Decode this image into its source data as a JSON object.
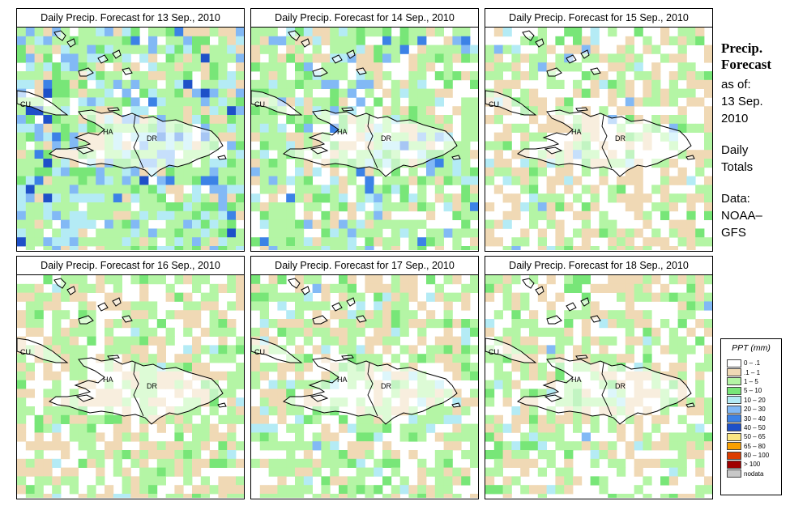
{
  "panels": [
    {
      "title": "Daily Precip. Forecast for  13 Sep., 2010",
      "seed": 13,
      "weights": [
        0.08,
        0.12,
        0.4,
        0.12,
        0.14,
        0.1,
        0.02,
        0.02
      ]
    },
    {
      "title": "Daily Precip. Forecast for  14 Sep., 2010",
      "seed": 14,
      "weights": [
        0.2,
        0.15,
        0.42,
        0.1,
        0.08,
        0.04,
        0.01,
        0.0
      ]
    },
    {
      "title": "Daily Precip. Forecast for  15 Sep., 2010",
      "seed": 15,
      "weights": [
        0.38,
        0.26,
        0.26,
        0.06,
        0.03,
        0.01,
        0.0,
        0.0
      ]
    },
    {
      "title": "Daily Precip. Forecast for  16 Sep., 2010",
      "seed": 16,
      "weights": [
        0.3,
        0.3,
        0.33,
        0.05,
        0.02,
        0.0,
        0.0,
        0.0
      ]
    },
    {
      "title": "Daily Precip. Forecast for  17 Sep., 2010",
      "seed": 17,
      "weights": [
        0.28,
        0.22,
        0.36,
        0.08,
        0.05,
        0.01,
        0.0,
        0.0
      ]
    },
    {
      "title": "Daily Precip. Forecast for  18 Sep., 2010",
      "seed": 18,
      "weights": [
        0.4,
        0.25,
        0.27,
        0.05,
        0.02,
        0.01,
        0.0,
        0.0
      ]
    }
  ],
  "map_labels": {
    "cu": "CU",
    "ha": "HA",
    "dr": "DR"
  },
  "sidebar": {
    "title_line1": "Precip.",
    "title_line2": "Forecast",
    "asof": "as of:",
    "date_line1": "13 Sep.",
    "date_line2": "2010",
    "daily_line1": "Daily",
    "daily_line2": "Totals",
    "data_line1": "Data:",
    "data_line2": "NOAA–",
    "data_line3": "GFS"
  },
  "legend": {
    "title": "PPT (mm)",
    "items": [
      {
        "label": "0 – .1",
        "color": "#ffffff"
      },
      {
        "label": ".1 – 1",
        "color": "#f0d9b5"
      },
      {
        "label": "1 – 5",
        "color": "#b4f5a5"
      },
      {
        "label": "5 – 10",
        "color": "#78e678"
      },
      {
        "label": "10 – 20",
        "color": "#b4ebf5"
      },
      {
        "label": "20 – 30",
        "color": "#82b9f5"
      },
      {
        "label": "30 – 40",
        "color": "#3c82e6"
      },
      {
        "label": "40 – 50",
        "color": "#1e50c8"
      },
      {
        "label": "50 – 65",
        "color": "#fae682"
      },
      {
        "label": "65 – 80",
        "color": "#faa000"
      },
      {
        "label": "80 – 100",
        "color": "#dc3c00"
      },
      {
        "label": "> 100",
        "color": "#a00000"
      },
      {
        "label": "nodata",
        "color": "#c8c8c8"
      }
    ]
  }
}
